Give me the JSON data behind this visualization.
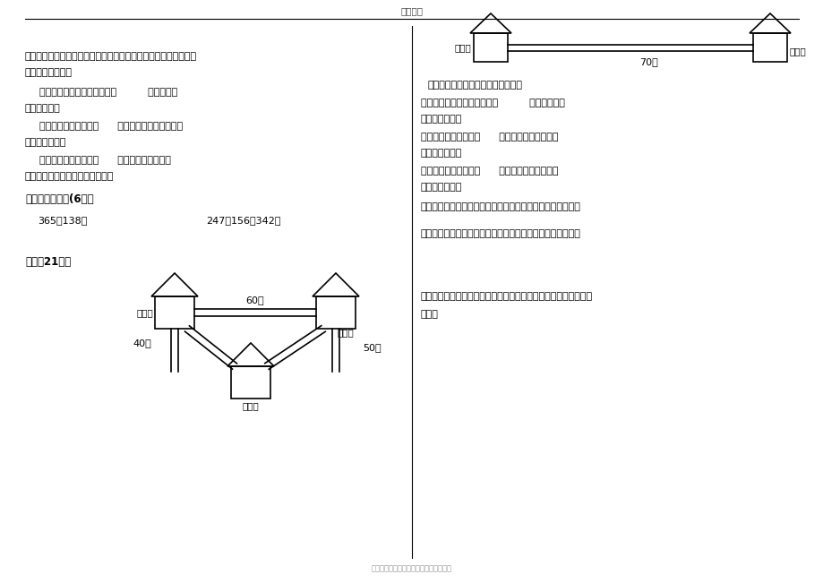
{
  "title_top": "精品文档",
  "bg_color": "#ffffff",
  "bottom_text": "来源于网络，如有侵权请联系管理员删除",
  "section6_title": "六、列竖式计算(6分）",
  "eq1": "365＋138＝",
  "eq2": "247＋156＋342＝",
  "section7_title": "七、（21分）",
  "left_texts": [
    [
      28,
      588,
      "红红从甜品屋出发到电影院，她可以有下面几种走法。请把红红的",
      8.0,
      false
    ],
    [
      28,
      570,
      "行走路线填完整。",
      8.0,
      false
    ],
    [
      44,
      548,
      "⑴从甜品屋出发，向北走到（          ），再向（",
      8.0,
      false
    ],
    [
      28,
      530,
      "）走到电影院",
      8.0,
      false
    ],
    [
      44,
      510,
      "⑵从甜品屋出发，向（      ）走到街心花园，再向（",
      8.0,
      false
    ],
    [
      28,
      492,
      "）走到电影院。",
      8.0,
      false
    ],
    [
      44,
      472,
      "⑶从甜品屋出发，向（      ）走到花店，再向（",
      8.0,
      false
    ],
    [
      28,
      454,
      "）走到书店，再向北走到电影院。",
      8.0,
      false
    ]
  ],
  "right_texts": [
    [
      478,
      556,
      "小猪要到小猴家玩，它可以怎么走？",
      8.0,
      false
    ],
    [
      470,
      536,
      "⑴小猪从家出发，向南走到（          ）家，再向（",
      8.0,
      false
    ],
    [
      470,
      518,
      "）走到小猴家。",
      8.0,
      false
    ],
    [
      470,
      498,
      "⑵小猪从家出发，向（      ）走到小狗家，再向（",
      8.0,
      false
    ],
    [
      470,
      480,
      "）走到小猴家。",
      8.0,
      false
    ],
    [
      470,
      460,
      "⑶小猪从家出发，向（      ）走到小兔家，再向（",
      8.0,
      false
    ],
    [
      470,
      442,
      "）走到小猴家。",
      8.0,
      false
    ],
    [
      470,
      420,
      "⑷在上面三种走法中，你觉得小猪怎样走，到小猴家会近些？",
      8.0,
      false
    ],
    [
      470,
      390,
      "⑸算一算，小猪从家出发，经过小鹿家到小猴家要走多少米。",
      8.0,
      false
    ]
  ],
  "q6_line1": "⑹小狗从家出发，到小鹿家去玩。你觉得它怎样走近些？（用算式",
  "q6_line2": "解答）"
}
